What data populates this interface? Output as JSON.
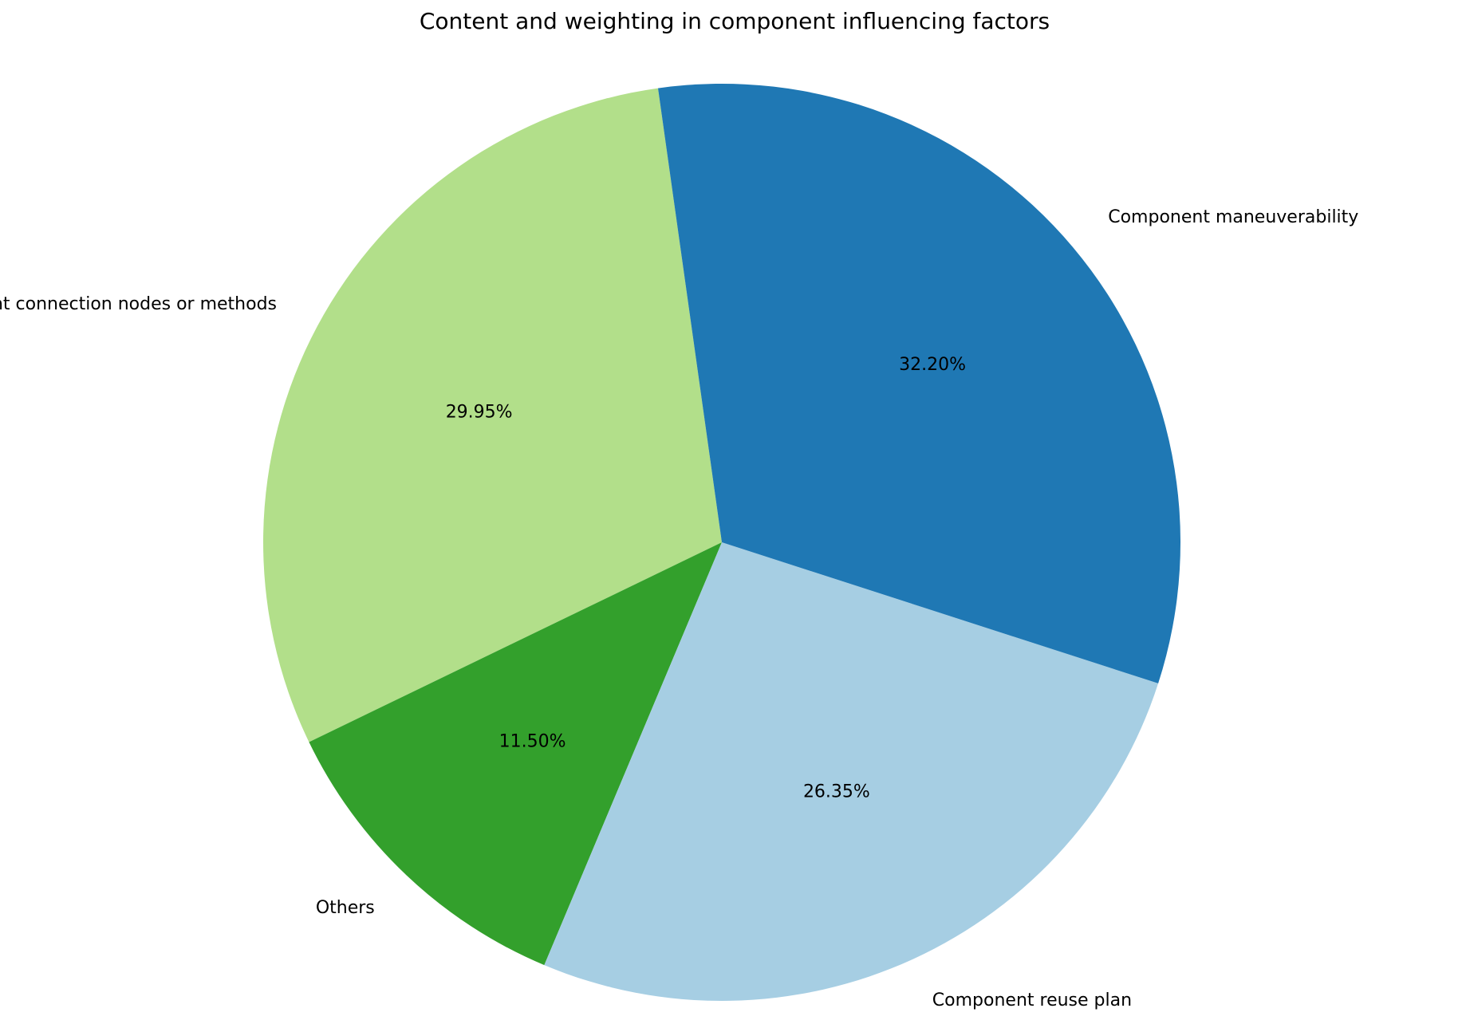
{
  "chart_data": {
    "type": "pie",
    "title": "Content and weighting in component influencing factors",
    "start_angle_deg": 98,
    "direction": "counterclockwise",
    "slices": [
      {
        "label": "Component connection nodes or methods",
        "value": 29.95,
        "pct_label": "29.95%",
        "color": "#b2df8a"
      },
      {
        "label": "Others",
        "value": 11.5,
        "pct_label": "11.50%",
        "color": "#33a02c"
      },
      {
        "label": "Component reuse plan",
        "value": 26.35,
        "pct_label": "26.35%",
        "color": "#a6cee3"
      },
      {
        "label": "Component maneuverability",
        "value": 32.2,
        "pct_label": "32.20%",
        "color": "#1f78b4"
      }
    ]
  }
}
